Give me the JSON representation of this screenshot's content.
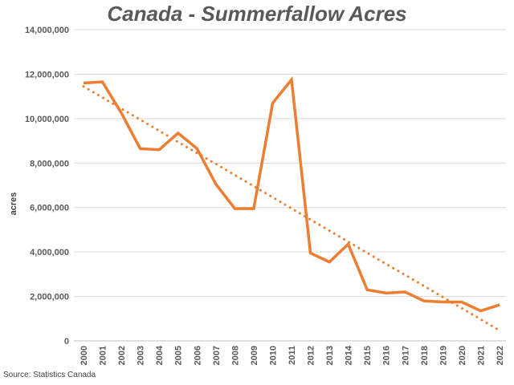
{
  "chart_data": {
    "type": "line",
    "title": "Canada - Summerfallow Acres",
    "xlabel": "",
    "ylabel": "acres",
    "source": "Source: Statistics Canada",
    "ylim": [
      0,
      14000000
    ],
    "yticks": [
      "0",
      "2,000,000",
      "4,000,000",
      "6,000,000",
      "8,000,000",
      "10,000,000",
      "12,000,000",
      "14,000,000"
    ],
    "ytick_values": [
      0,
      2000000,
      4000000,
      6000000,
      8000000,
      10000000,
      12000000,
      14000000
    ],
    "grid": true,
    "categories": [
      "2000",
      "2001",
      "2002",
      "2003",
      "2004",
      "2005",
      "2006",
      "2007",
      "2008",
      "2009",
      "2010",
      "2011",
      "2012",
      "2013",
      "2014",
      "2015",
      "2016",
      "2017",
      "2018",
      "2019",
      "2020",
      "2021",
      "2022"
    ],
    "series": [
      {
        "style": "solid",
        "color": "#ED7D31",
        "values": [
          11600000,
          11650000,
          10250000,
          8650000,
          8600000,
          9350000,
          8650000,
          7050000,
          5950000,
          5950000,
          10700000,
          11750000,
          3950000,
          3550000,
          4350000,
          2300000,
          2150000,
          2200000,
          1800000,
          1750000,
          1750000,
          1350000,
          1620000
        ]
      },
      {
        "style": "dotted",
        "trendline": true,
        "color": "#ED7D31",
        "values": [
          11450000,
          10950000,
          10450000,
          9950000,
          9450000,
          8950000,
          8450000,
          7960000,
          7460000,
          6960000,
          6460000,
          5960000,
          5460000,
          4960000,
          4460000,
          3960000,
          3460000,
          2970000,
          2470000,
          1970000,
          1470000,
          970000,
          470000
        ]
      }
    ]
  }
}
